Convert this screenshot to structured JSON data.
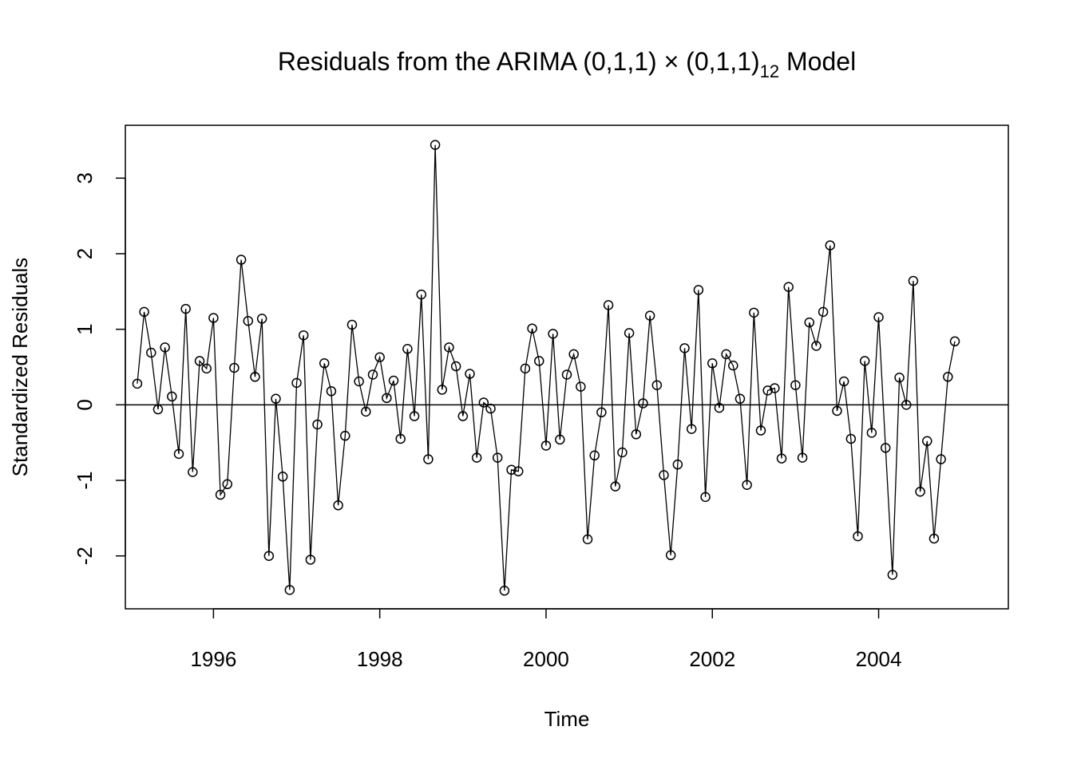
{
  "chart_data": {
    "type": "line",
    "title": "Residuals from the ARIMA (0,1,1) × (0,1,1)",
    "title_subscript": "12",
    "title_suffix": " Model",
    "xlabel": "Time",
    "ylabel": "Standardized Residuals",
    "xlim": [
      1994.94,
      2005.56
    ],
    "ylim": [
      -2.7,
      3.7
    ],
    "x_ticks": [
      1996,
      1998,
      2000,
      2002,
      2004
    ],
    "x_tick_labels": [
      "1996",
      "1998",
      "2000",
      "2002",
      "2004"
    ],
    "y_ticks": [
      -2,
      -1,
      0,
      1,
      2,
      3
    ],
    "y_tick_labels": [
      "-2",
      "-1",
      "0",
      "1",
      "2",
      "3"
    ],
    "reference_line": 0,
    "marker": "open-circle",
    "grid": false,
    "start": 1995.0833,
    "frequency": 12,
    "series": [
      {
        "values": [
          0.28,
          1.23,
          0.69,
          -0.06,
          0.76,
          0.11,
          -0.65,
          1.27,
          -0.89,
          0.58,
          0.48,
          1.15,
          -1.19,
          -1.05,
          0.49,
          1.92,
          1.11,
          0.37,
          1.14,
          -2.0,
          0.08,
          -0.95,
          -2.45,
          0.29,
          0.92,
          -2.05,
          -0.26,
          0.55,
          0.18,
          -1.33,
          -0.41,
          1.06,
          0.31,
          -0.09,
          0.4,
          0.63,
          0.09,
          0.32,
          -0.45,
          0.74,
          -0.15,
          1.46,
          -0.72,
          3.44,
          0.2,
          0.76,
          0.51,
          -0.15,
          0.41,
          -0.7,
          0.03,
          -0.05,
          -0.7,
          -2.46,
          -0.86,
          -0.88,
          0.48,
          1.01,
          0.58,
          -0.54,
          0.94,
          -0.46,
          0.4,
          0.67,
          0.24,
          -1.78,
          -0.67,
          -0.1,
          1.32,
          -1.08,
          -0.63,
          0.95,
          -0.39,
          0.02,
          1.18,
          0.26,
          -0.93,
          -1.99,
          -0.79,
          0.75,
          -0.32,
          1.52,
          -1.22,
          0.55,
          -0.04,
          0.67,
          0.52,
          0.08,
          -1.06,
          1.22,
          -0.34,
          0.19,
          0.22,
          -0.71,
          1.56,
          0.26,
          -0.7,
          1.09,
          0.78,
          1.23,
          2.11,
          -0.08,
          0.31,
          -0.45,
          -1.74,
          0.58,
          -0.37,
          1.16,
          -0.57,
          -2.25,
          0.36,
          0.0,
          1.64,
          -1.15,
          -0.48,
          -1.77,
          -0.72,
          0.37,
          0.84
        ]
      }
    ]
  }
}
